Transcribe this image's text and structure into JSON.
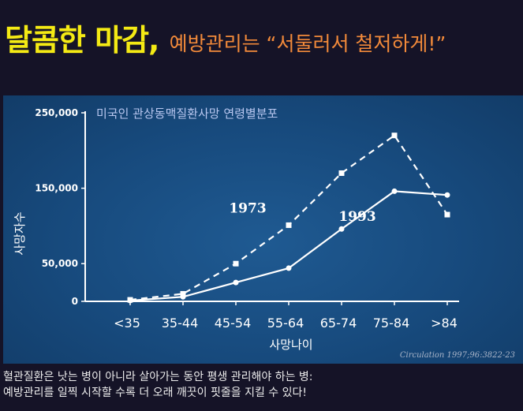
{
  "header": {
    "title": "달콤한 마감,",
    "subtitle": "예방관리는 “서둘러서 철저하게!”"
  },
  "chart_data": {
    "type": "line",
    "title": "미국인 관상동맥질환사망 연령별분포",
    "xlabel": "사망나이",
    "ylabel": "사망자수",
    "categories": [
      "<35",
      "35-44",
      "45-54",
      "55-64",
      "65-74",
      "75-84",
      ">84"
    ],
    "y_ticks": [
      0,
      50000,
      150000,
      250000
    ],
    "y_tick_labels": [
      "0",
      "50,000",
      "150,000",
      "250,000"
    ],
    "ylim": [
      0,
      250000
    ],
    "series": [
      {
        "name": "1973",
        "style": "dashed",
        "marker": "square",
        "values": [
          2000,
          10000,
          50000,
          101000,
          170000,
          220000,
          115000
        ]
      },
      {
        "name": "1993",
        "style": "solid",
        "marker": "circle",
        "values": [
          1000,
          6000,
          25000,
          44000,
          96000,
          146000,
          141000
        ]
      }
    ],
    "citation": "Circulation 1997;96:3822-23"
  },
  "footer": {
    "line1": "혈관질환은 낫는 병이 아니라 살아가는 동안 평생 관리해야 하는 병:",
    "line2": "예방관리를 일찍 시작할 수록  더 오래 깨끗이 핏줄을  지킬 수 있다!"
  },
  "colors": {
    "title": "#f4ea14",
    "subtitle": "#f28a3a",
    "chart_title": "#b9c7f0",
    "line": "#ffffff"
  }
}
